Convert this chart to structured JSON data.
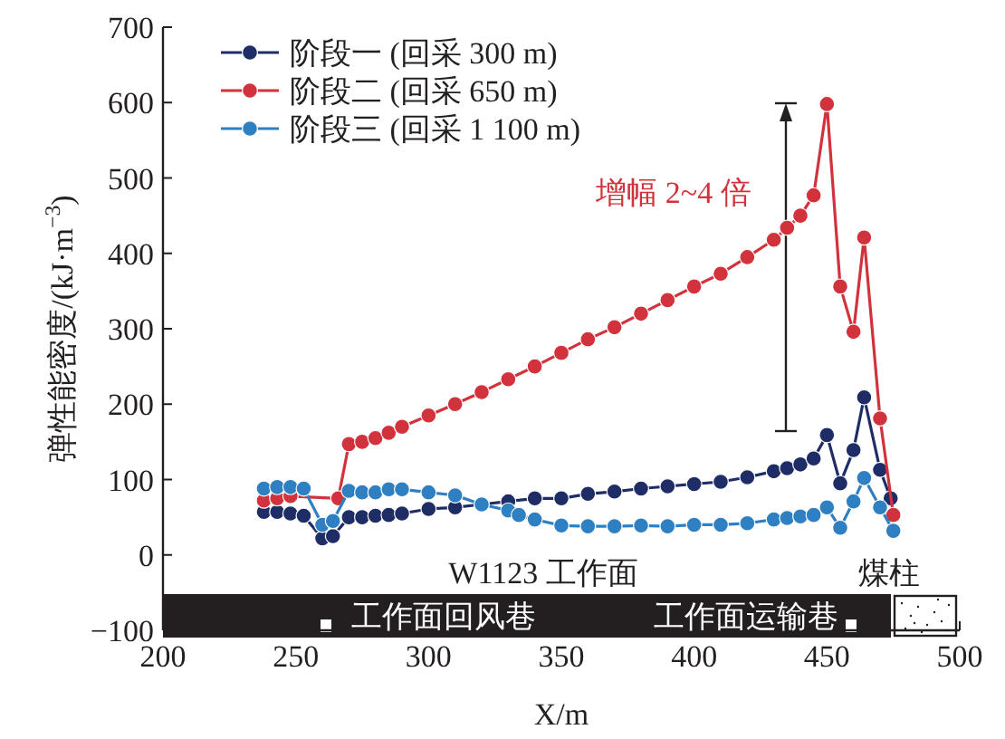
{
  "chart_data": {
    "type": "line",
    "xlabel": "X/m",
    "ylabel": "弹性能密度/(kJ·m$^{−3}$)",
    "xlim": [
      200,
      500
    ],
    "ylim": [
      -100,
      700
    ],
    "xticks": [
      200,
      250,
      300,
      350,
      400,
      450,
      500
    ],
    "yticks": [
      {
        "value": -100,
        "label": "−100"
      },
      0,
      100,
      200,
      300,
      400,
      500,
      600,
      700
    ],
    "marker": "circle",
    "legend": "top left",
    "series": [
      {
        "name": "阶段一 (回采 300 m)",
        "color": "#1f2d66",
        "x": [
          238,
          243,
          248,
          253,
          260,
          264,
          270,
          275,
          280,
          285,
          290,
          300,
          310,
          320,
          330,
          340,
          350,
          360,
          370,
          380,
          390,
          400,
          410,
          420,
          430,
          435,
          440,
          445,
          450,
          455,
          460,
          464,
          470,
          474
        ],
        "values": [
          57,
          57,
          55,
          52,
          22,
          25,
          50,
          50,
          52,
          53,
          55,
          61,
          63,
          67,
          71,
          75,
          75,
          81,
          84,
          88,
          91,
          94,
          97,
          103,
          111,
          115,
          120,
          128,
          159,
          95,
          139,
          209,
          113,
          75
        ]
      },
      {
        "name": "阶段二 (回采 650 m)",
        "color": "#d2323c",
        "x": [
          238,
          243,
          248,
          266,
          270,
          275,
          280,
          285,
          290,
          300,
          310,
          320,
          330,
          340,
          350,
          360,
          370,
          380,
          390,
          400,
          410,
          420,
          430,
          435,
          440,
          445,
          450,
          455,
          460,
          464,
          470,
          475
        ],
        "values": [
          72,
          75,
          78,
          75,
          147,
          150,
          155,
          162,
          170,
          185,
          200,
          216,
          233,
          250,
          268,
          286,
          302,
          320,
          338,
          356,
          373,
          395,
          418,
          434,
          450,
          477,
          598,
          356,
          296,
          421,
          181,
          53
        ]
      },
      {
        "name": "阶段三 (回采 1 100 m)",
        "color": "#2f80c2",
        "x": [
          238,
          243,
          248,
          253,
          260,
          264,
          270,
          275,
          280,
          285,
          290,
          300,
          310,
          320,
          330,
          334,
          340,
          350,
          360,
          370,
          380,
          390,
          400,
          410,
          420,
          430,
          435,
          440,
          445,
          450,
          455,
          460,
          464,
          470,
          475
        ],
        "values": [
          88,
          90,
          90,
          88,
          40,
          45,
          85,
          83,
          83,
          87,
          87,
          83,
          79,
          67,
          59,
          53,
          47,
          39,
          38,
          38,
          39,
          38,
          40,
          40,
          42,
          47,
          49,
          51,
          53,
          63,
          36,
          71,
          102,
          63,
          32
        ]
      }
    ],
    "annotations": [
      "增幅 2~4 倍",
      "W1123 工作面",
      "工作面回风巷",
      "工作面运输巷",
      "煤柱"
    ]
  }
}
